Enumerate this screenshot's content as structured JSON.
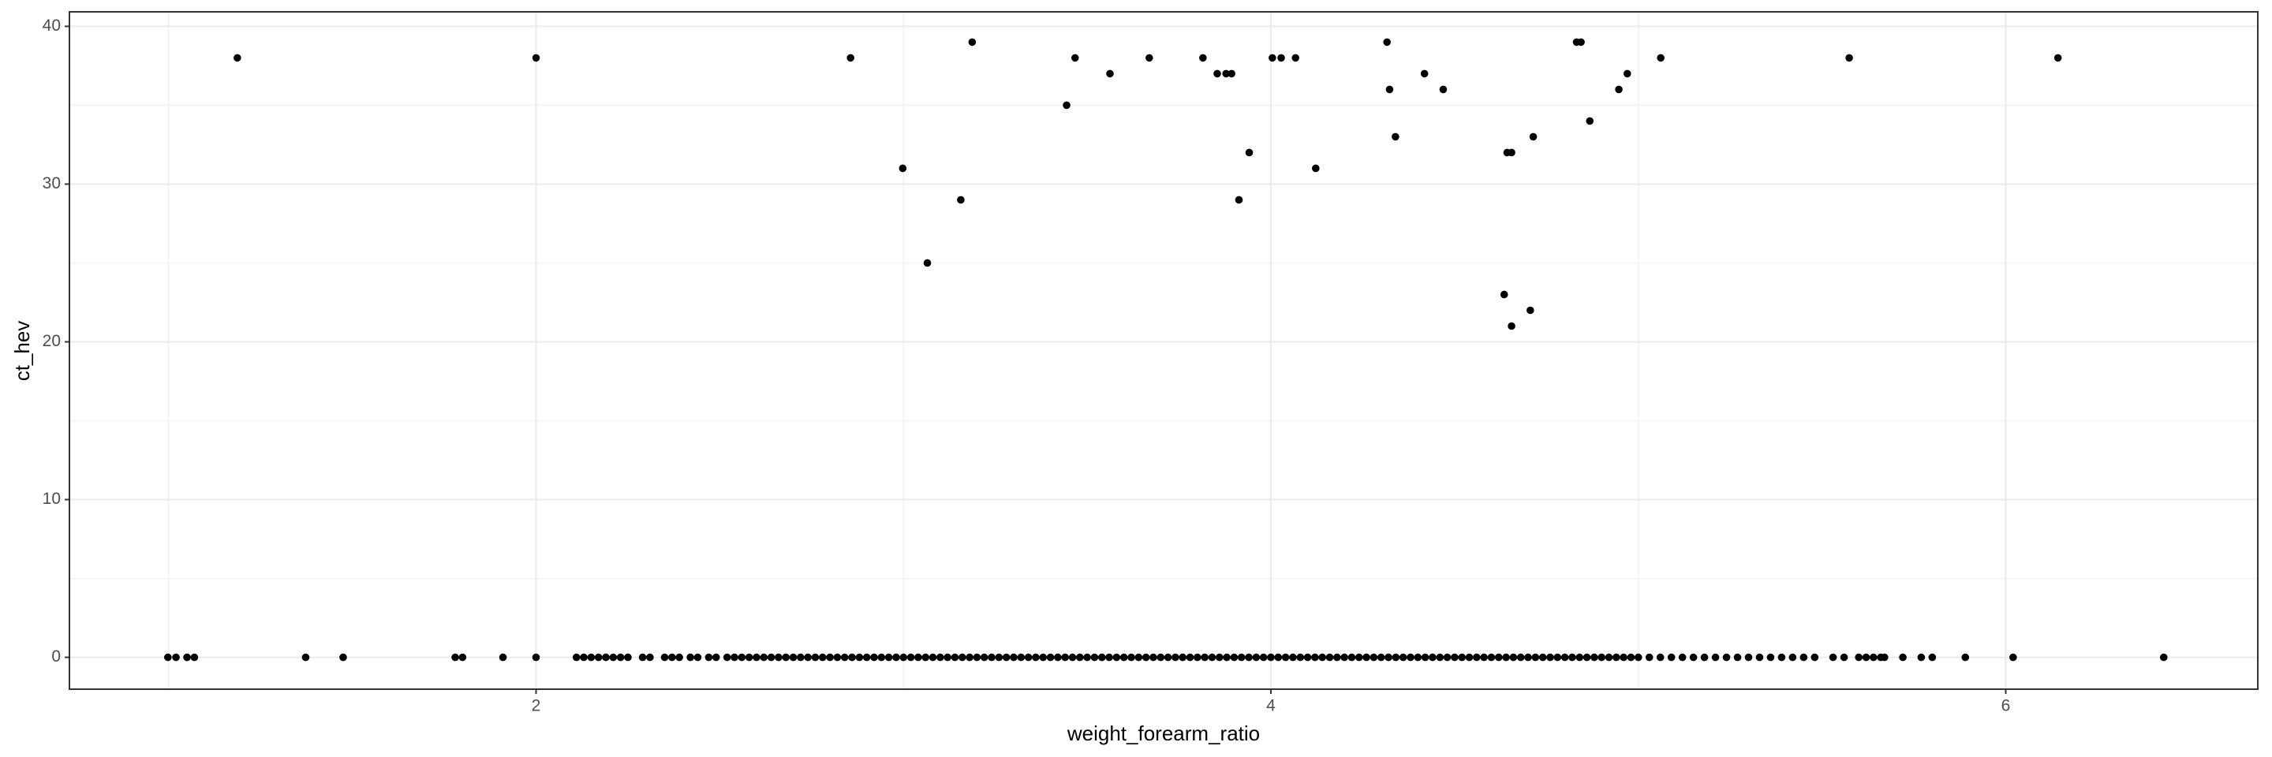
{
  "chart_data": {
    "type": "scatter",
    "x_label": "weight_forearm_ratio",
    "y_label": "ct_hev",
    "xlim": [
      0.73,
      6.686
    ],
    "ylim": [
      -2.02,
      40.92
    ],
    "xticks": [
      2,
      4,
      6
    ],
    "yticks": [
      0,
      10,
      20,
      30,
      40
    ],
    "grid": true,
    "color": "#000000",
    "x": [
      0.998,
      1.02,
      1.05,
      1.07,
      1.373,
      1.475,
      1.78,
      1.8,
      1.91,
      2.0,
      2.11,
      2.13,
      2.15,
      2.17,
      2.19,
      2.21,
      2.23,
      2.25,
      2.29,
      2.31,
      2.35,
      2.37,
      2.39,
      2.42,
      2.44,
      2.47,
      2.49,
      2.52,
      2.54,
      2.56,
      2.58,
      2.6,
      2.62,
      2.64,
      2.66,
      2.68,
      2.7,
      2.72,
      2.74,
      2.76,
      2.78,
      2.8,
      2.82,
      2.84,
      2.86,
      2.88,
      2.9,
      2.92,
      2.94,
      2.96,
      2.98,
      3.0,
      3.02,
      3.04,
      3.06,
      3.08,
      3.1,
      3.12,
      3.14,
      3.16,
      3.18,
      3.2,
      3.22,
      3.24,
      3.26,
      3.28,
      3.3,
      3.32,
      3.34,
      3.36,
      3.38,
      3.4,
      3.42,
      3.44,
      3.46,
      3.48,
      3.5,
      3.52,
      3.54,
      3.56,
      3.58,
      3.6,
      3.62,
      3.64,
      3.66,
      3.68,
      3.7,
      3.72,
      3.74,
      3.76,
      3.78,
      3.8,
      3.82,
      3.84,
      3.86,
      3.88,
      3.9,
      3.92,
      3.94,
      3.96,
      3.98,
      4.0,
      4.02,
      4.04,
      4.06,
      4.08,
      4.1,
      4.12,
      4.14,
      4.16,
      4.18,
      4.2,
      4.22,
      4.24,
      4.26,
      4.28,
      4.3,
      4.32,
      4.34,
      4.36,
      4.38,
      4.4,
      4.42,
      4.44,
      4.46,
      4.48,
      4.5,
      4.52,
      4.54,
      4.56,
      4.58,
      4.6,
      4.62,
      4.64,
      4.66,
      4.68,
      4.7,
      4.72,
      4.74,
      4.76,
      4.78,
      4.8,
      4.82,
      4.84,
      4.86,
      4.88,
      4.9,
      4.92,
      4.94,
      4.96,
      4.98,
      5.0,
      5.03,
      5.06,
      5.09,
      5.12,
      5.15,
      5.18,
      5.21,
      5.24,
      5.27,
      5.3,
      5.33,
      5.36,
      5.39,
      5.42,
      5.45,
      5.48,
      5.53,
      5.56,
      5.6,
      5.62,
      5.64,
      5.66,
      5.67,
      5.72,
      5.77,
      5.8,
      5.89,
      6.02,
      6.43,
      1.187,
      2.0,
      2.856,
      2.998,
      3.065,
      3.156,
      3.187,
      3.444,
      3.467,
      3.562,
      3.669,
      3.815,
      3.854,
      3.878,
      3.893,
      3.913,
      3.941,
      4.004,
      4.028,
      4.067,
      4.122,
      4.316,
      4.323,
      4.339,
      4.418,
      4.469,
      4.635,
      4.643,
      4.655,
      4.655,
      4.706,
      4.714,
      4.832,
      4.844,
      4.868,
      4.947,
      4.97,
      5.061,
      5.574,
      6.142
    ],
    "values": [
      0,
      0,
      0,
      0,
      0,
      0,
      0,
      0,
      0,
      0,
      0,
      0,
      0,
      0,
      0,
      0,
      0,
      0,
      0,
      0,
      0,
      0,
      0,
      0,
      0,
      0,
      0,
      0,
      0,
      0,
      0,
      0,
      0,
      0,
      0,
      0,
      0,
      0,
      0,
      0,
      0,
      0,
      0,
      0,
      0,
      0,
      0,
      0,
      0,
      0,
      0,
      0,
      0,
      0,
      0,
      0,
      0,
      0,
      0,
      0,
      0,
      0,
      0,
      0,
      0,
      0,
      0,
      0,
      0,
      0,
      0,
      0,
      0,
      0,
      0,
      0,
      0,
      0,
      0,
      0,
      0,
      0,
      0,
      0,
      0,
      0,
      0,
      0,
      0,
      0,
      0,
      0,
      0,
      0,
      0,
      0,
      0,
      0,
      0,
      0,
      0,
      0,
      0,
      0,
      0,
      0,
      0,
      0,
      0,
      0,
      0,
      0,
      0,
      0,
      0,
      0,
      0,
      0,
      0,
      0,
      0,
      0,
      0,
      0,
      0,
      0,
      0,
      0,
      0,
      0,
      0,
      0,
      0,
      0,
      0,
      0,
      0,
      0,
      0,
      0,
      0,
      0,
      0,
      0,
      0,
      0,
      0,
      0,
      0,
      0,
      0,
      0,
      0,
      0,
      0,
      0,
      0,
      0,
      0,
      0,
      0,
      0,
      0,
      0,
      0,
      0,
      0,
      0,
      0,
      0,
      0,
      0,
      0,
      0,
      0,
      0,
      0,
      0,
      0,
      0,
      0,
      38,
      38,
      38,
      31,
      25,
      29,
      39,
      35,
      38,
      37,
      38,
      38,
      37,
      37,
      37,
      29,
      32,
      38,
      38,
      38,
      31,
      39,
      36,
      33,
      37,
      36,
      23,
      32,
      32,
      21,
      22,
      33,
      39,
      39,
      34,
      36,
      37,
      38,
      38,
      38
    ]
  }
}
